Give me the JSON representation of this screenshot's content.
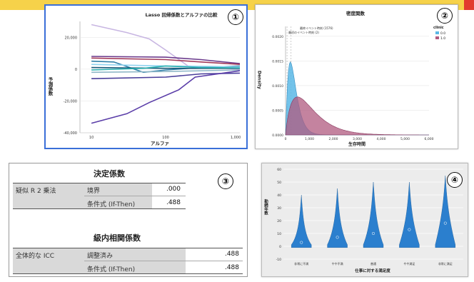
{
  "colors": {
    "banner": "#f6d24a",
    "accent": "#e23b2e",
    "panel1_border": "#3a6fd8"
  },
  "panel1": {
    "badge": "①",
    "chart_data": {
      "type": "line",
      "title": "Lasso 回帰係数とアルファの比較",
      "xlabel": "アルファ",
      "ylabel": "予測係数",
      "xscale": "log",
      "xlim": [
        7,
        1000
      ],
      "ylim": [
        -40000,
        30000
      ],
      "yticks": [
        "20,000",
        "0",
        "-20,000",
        "-40,000"
      ],
      "xticks": [
        "10",
        "100",
        "1,000"
      ],
      "series": [
        {
          "color": "#c8b6e2",
          "values": [
            [
              10,
              28000
            ],
            [
              30,
              23000
            ],
            [
              60,
              19000
            ],
            [
              100,
              12000
            ],
            [
              200,
              2000
            ],
            [
              1000,
              0
            ]
          ]
        },
        {
          "color": "#6b3a8c",
          "values": [
            [
              10,
              8000
            ],
            [
              100,
              7500
            ],
            [
              300,
              6000
            ],
            [
              1000,
              3500
            ]
          ]
        },
        {
          "color": "#a23a5a",
          "values": [
            [
              10,
              7000
            ],
            [
              100,
              6000
            ],
            [
              300,
              4500
            ],
            [
              1000,
              3000
            ]
          ]
        },
        {
          "color": "#2e7fa8",
          "values": [
            [
              10,
              5000
            ],
            [
              20,
              4500
            ],
            [
              50,
              -2000
            ],
            [
              100,
              -500
            ],
            [
              300,
              1000
            ],
            [
              1000,
              2000
            ]
          ]
        },
        {
          "color": "#8fd3f0",
          "values": [
            [
              10,
              3000
            ],
            [
              100,
              2000
            ],
            [
              1000,
              1500
            ]
          ]
        },
        {
          "color": "#1a5a7a",
          "values": [
            [
              10,
              1000
            ],
            [
              100,
              500
            ],
            [
              1000,
              500
            ]
          ]
        },
        {
          "color": "#29b0b0",
          "values": [
            [
              10,
              -500
            ],
            [
              50,
              500
            ],
            [
              100,
              2000
            ],
            [
              300,
              1000
            ],
            [
              1000,
              800
            ]
          ]
        },
        {
          "color": "#90b8c8",
          "values": [
            [
              10,
              -2000
            ],
            [
              100,
              -1500
            ],
            [
              1000,
              -500
            ]
          ]
        },
        {
          "color": "#4a3e9a",
          "values": [
            [
              10,
              -6000
            ],
            [
              100,
              -5000
            ],
            [
              300,
              -3000
            ],
            [
              1000,
              -2500
            ]
          ]
        },
        {
          "color": "#5a3da8",
          "values": [
            [
              10,
              -34000
            ],
            [
              30,
              -28000
            ],
            [
              60,
              -21000
            ],
            [
              150,
              -13000
            ],
            [
              250,
              -5000
            ],
            [
              1000,
              -1000
            ]
          ]
        }
      ]
    }
  },
  "panel2": {
    "badge": "②",
    "chart_data": {
      "type": "area",
      "title": "密度関数",
      "xlabel": "生存時間",
      "ylabel": "Density",
      "xlim": [
        0,
        6000
      ],
      "ylim": [
        0,
        0.0022
      ],
      "yticks": [
        "0.0020",
        "0.0015",
        "0.0010",
        "0.0005",
        "0.0000"
      ],
      "xticks": [
        "0",
        "1,000",
        "2,000",
        "3,000",
        "4,000",
        "5,000",
        "6,000"
      ],
      "annotations": [
        "最終イベント時刻 (1576)",
        "最初のイベント時刻 (2)"
      ],
      "legend": {
        "title": "clinic",
        "position": "top-right"
      },
      "series": [
        {
          "name": "0.0",
          "color": "#5bb8e6",
          "peak_x": 200,
          "peak_y": 0.00148
        },
        {
          "name": "1.0",
          "color": "#b05a7f",
          "peak_x": 500,
          "peak_y": 0.00077
        }
      ]
    }
  },
  "panel3": {
    "badge": "③",
    "title1": "決定係数",
    "row1_label": "疑似 R 2 乗法",
    "row1_sub1": "境界",
    "row1_val1": ".000",
    "row1_sub2": "条件式 (If-Then)",
    "row1_val2": ".488",
    "title2": "級内相関係数",
    "row2_label": "全体的な ICC",
    "row2_sub1": "調整済み",
    "row2_val1": ".488",
    "row2_sub2": "条件式 (If-Then)",
    "row2_val2": ".488"
  },
  "panel4": {
    "badge": "④",
    "chart_data": {
      "type": "violin",
      "xlabel": "仕事に対する満足度",
      "ylabel": "勤続年数",
      "ylim": [
        -10,
        60
      ],
      "yticks": [
        "60",
        "50",
        "40",
        "30",
        "20",
        "10",
        "0",
        "-10"
      ],
      "categories": [
        "非常に不満",
        "やや不満",
        "普通",
        "やや満足",
        "非常に満足"
      ],
      "medians": [
        3,
        7,
        10,
        13,
        18
      ],
      "color": "#2b7fce"
    }
  }
}
